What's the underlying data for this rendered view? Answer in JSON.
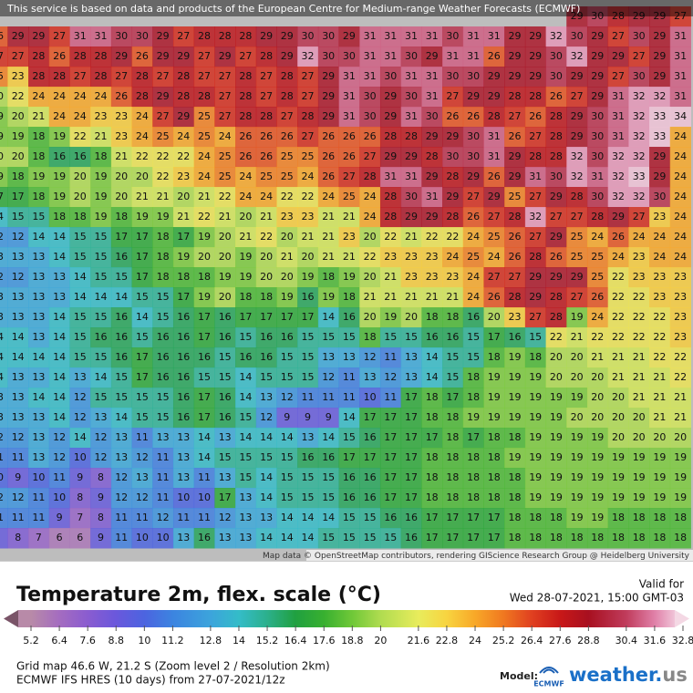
{
  "banner": "This service is based on data and products of the European Centre for Medium-range Weather Forecasts (ECMWF)",
  "attribution": "Map data © OpenStreetMap contributors, rendering GIScience Research Group @ Heidelberg University",
  "grid": {
    "rows": [
      [
        null,
        null,
        null,
        null,
        null,
        null,
        null,
        null,
        null,
        null,
        null,
        null,
        null,
        null,
        null,
        null,
        null,
        null,
        null,
        null,
        null,
        null,
        null,
        null,
        null,
        null,
        null,
        null,
        29,
        30,
        28,
        29,
        29,
        27
      ],
      [
        26,
        29,
        29,
        27,
        31,
        31,
        30,
        30,
        29,
        27,
        28,
        28,
        28,
        29,
        29,
        30,
        30,
        29,
        31,
        31,
        31,
        31,
        30,
        31,
        31,
        29,
        29,
        32,
        30,
        29,
        27,
        30,
        29,
        31
      ],
      [
        27,
        27,
        28,
        26,
        28,
        28,
        29,
        26,
        29,
        29,
        27,
        29,
        27,
        28,
        29,
        32,
        30,
        30,
        31,
        31,
        30,
        29,
        31,
        31,
        26,
        29,
        29,
        30,
        32,
        29,
        29,
        27,
        29,
        31
      ],
      [
        25,
        23,
        28,
        28,
        27,
        28,
        27,
        28,
        27,
        28,
        27,
        27,
        28,
        27,
        28,
        27,
        29,
        31,
        31,
        30,
        31,
        31,
        30,
        30,
        29,
        29,
        29,
        30,
        29,
        29,
        27,
        30,
        29,
        31
      ],
      [
        20,
        22,
        24,
        24,
        24,
        24,
        26,
        28,
        29,
        28,
        28,
        27,
        28,
        27,
        28,
        27,
        29,
        31,
        30,
        29,
        30,
        31,
        27,
        29,
        29,
        28,
        28,
        26,
        27,
        29,
        31,
        32,
        32,
        31
      ],
      [
        19,
        20,
        21,
        24,
        24,
        23,
        23,
        24,
        27,
        29,
        25,
        27,
        28,
        28,
        27,
        28,
        29,
        31,
        30,
        29,
        31,
        30,
        26,
        26,
        28,
        27,
        26,
        28,
        29,
        30,
        31,
        32,
        33,
        34
      ],
      [
        19,
        19,
        18,
        19,
        22,
        21,
        23,
        24,
        25,
        24,
        25,
        24,
        26,
        26,
        26,
        27,
        26,
        26,
        26,
        28,
        28,
        29,
        29,
        30,
        31,
        26,
        27,
        28,
        29,
        30,
        31,
        32,
        33,
        24
      ],
      [
        20,
        20,
        18,
        16,
        16,
        18,
        21,
        22,
        22,
        22,
        24,
        25,
        26,
        26,
        25,
        25,
        26,
        26,
        27,
        29,
        29,
        28,
        30,
        30,
        31,
        29,
        28,
        28,
        32,
        30,
        32,
        32,
        29,
        24
      ],
      [
        19,
        18,
        19,
        19,
        20,
        19,
        20,
        20,
        22,
        23,
        24,
        25,
        24,
        25,
        25,
        24,
        26,
        27,
        28,
        31,
        31,
        29,
        28,
        29,
        26,
        29,
        31,
        30,
        32,
        31,
        32,
        33,
        29,
        24
      ],
      [
        17,
        17,
        18,
        19,
        20,
        19,
        20,
        21,
        21,
        20,
        21,
        22,
        24,
        24,
        22,
        22,
        24,
        25,
        24,
        28,
        30,
        31,
        29,
        27,
        29,
        25,
        27,
        29,
        28,
        30,
        32,
        32,
        30,
        24
      ],
      [
        14,
        15,
        15,
        18,
        18,
        19,
        18,
        19,
        19,
        21,
        22,
        21,
        20,
        21,
        23,
        23,
        21,
        21,
        24,
        28,
        29,
        29,
        28,
        26,
        27,
        28,
        32,
        27,
        27,
        28,
        29,
        27,
        23,
        24
      ],
      [
        12,
        12,
        14,
        14,
        15,
        15,
        17,
        17,
        18,
        17,
        19,
        20,
        21,
        22,
        20,
        21,
        21,
        23,
        20,
        22,
        21,
        22,
        22,
        24,
        25,
        26,
        27,
        29,
        25,
        24,
        26,
        24,
        24,
        24
      ],
      [
        13,
        13,
        13,
        14,
        15,
        15,
        16,
        17,
        18,
        19,
        20,
        20,
        19,
        20,
        21,
        20,
        21,
        21,
        22,
        23,
        23,
        23,
        24,
        25,
        24,
        26,
        28,
        26,
        25,
        25,
        24,
        23,
        24,
        24
      ],
      [
        12,
        12,
        13,
        13,
        14,
        15,
        15,
        17,
        18,
        18,
        18,
        19,
        19,
        20,
        20,
        19,
        18,
        19,
        20,
        21,
        23,
        23,
        23,
        24,
        27,
        27,
        29,
        29,
        29,
        25,
        22,
        23,
        23,
        23
      ],
      [
        13,
        13,
        13,
        13,
        14,
        14,
        14,
        15,
        15,
        17,
        19,
        20,
        18,
        18,
        19,
        16,
        19,
        18,
        21,
        21,
        21,
        21,
        21,
        24,
        26,
        28,
        29,
        28,
        27,
        26,
        22,
        22,
        23,
        23
      ],
      [
        13,
        13,
        13,
        14,
        15,
        15,
        16,
        14,
        15,
        16,
        17,
        16,
        17,
        17,
        17,
        17,
        14,
        16,
        20,
        19,
        20,
        18,
        18,
        16,
        20,
        23,
        27,
        28,
        19,
        24,
        22,
        22,
        22,
        23
      ],
      [
        14,
        14,
        13,
        14,
        15,
        16,
        16,
        15,
        16,
        16,
        17,
        16,
        15,
        16,
        16,
        15,
        15,
        15,
        18,
        15,
        15,
        16,
        16,
        15,
        17,
        16,
        15,
        22,
        21,
        22,
        22,
        22,
        22,
        23
      ],
      [
        14,
        14,
        14,
        14,
        15,
        15,
        16,
        17,
        16,
        16,
        16,
        15,
        16,
        16,
        15,
        15,
        13,
        13,
        12,
        11,
        13,
        14,
        15,
        15,
        18,
        19,
        18,
        20,
        20,
        21,
        21,
        21,
        22,
        22
      ],
      [
        14,
        13,
        13,
        14,
        13,
        14,
        15,
        17,
        16,
        16,
        15,
        15,
        14,
        15,
        15,
        15,
        12,
        11,
        13,
        12,
        13,
        14,
        15,
        18,
        19,
        19,
        19,
        20,
        20,
        20,
        21,
        21,
        21,
        22
      ],
      [
        13,
        13,
        14,
        14,
        12,
        15,
        15,
        15,
        15,
        16,
        17,
        16,
        14,
        13,
        12,
        11,
        11,
        11,
        10,
        11,
        17,
        18,
        17,
        18,
        19,
        19,
        19,
        19,
        19,
        20,
        20,
        21,
        21,
        21
      ],
      [
        13,
        13,
        13,
        14,
        12,
        13,
        14,
        15,
        15,
        16,
        17,
        16,
        15,
        12,
        9,
        9,
        9,
        14,
        17,
        17,
        17,
        18,
        18,
        19,
        19,
        19,
        19,
        19,
        20,
        20,
        20,
        20,
        21,
        21
      ],
      [
        12,
        12,
        13,
        12,
        14,
        12,
        13,
        11,
        13,
        13,
        14,
        13,
        14,
        14,
        14,
        13,
        14,
        15,
        16,
        17,
        17,
        17,
        18,
        17,
        18,
        18,
        19,
        19,
        19,
        19,
        20,
        20,
        20,
        20
      ],
      [
        11,
        11,
        13,
        12,
        10,
        12,
        13,
        12,
        11,
        13,
        14,
        15,
        15,
        15,
        15,
        16,
        16,
        17,
        17,
        17,
        17,
        18,
        18,
        18,
        18,
        19,
        19,
        19,
        19,
        19,
        19,
        19,
        19,
        19
      ],
      [
        10,
        9,
        10,
        11,
        9,
        8,
        12,
        13,
        11,
        13,
        11,
        13,
        15,
        14,
        15,
        15,
        15,
        16,
        16,
        17,
        17,
        18,
        18,
        18,
        18,
        18,
        19,
        19,
        19,
        19,
        19,
        19,
        19,
        19
      ],
      [
        12,
        12,
        11,
        10,
        8,
        9,
        12,
        12,
        11,
        10,
        10,
        17,
        13,
        14,
        15,
        15,
        15,
        16,
        16,
        17,
        17,
        18,
        18,
        18,
        18,
        18,
        19,
        19,
        19,
        19,
        19,
        19,
        19,
        19
      ],
      [
        11,
        11,
        11,
        9,
        7,
        8,
        11,
        11,
        12,
        11,
        11,
        12,
        13,
        13,
        14,
        14,
        14,
        15,
        15,
        16,
        16,
        17,
        17,
        17,
        17,
        18,
        18,
        18,
        19,
        19,
        18,
        18,
        18,
        18
      ],
      [
        9,
        8,
        7,
        6,
        6,
        9,
        11,
        10,
        10,
        13,
        16,
        13,
        13,
        14,
        14,
        14,
        15,
        15,
        15,
        15,
        16,
        17,
        17,
        17,
        17,
        18,
        18,
        18,
        18,
        18,
        18,
        18,
        18,
        18
      ]
    ]
  },
  "legend": {
    "title": "Temperature 2m, flex. scale (°C)",
    "valid_label": "Valid for",
    "valid_time": "Wed 28-07-2021, 15:00 GMT-03",
    "ticks": [
      5.2,
      6.4,
      7.6,
      8.8,
      10,
      11.2,
      12.8,
      14,
      15.2,
      16.4,
      17.6,
      18.8,
      20,
      21.6,
      22.8,
      24,
      25.2,
      26.4,
      27.6,
      28.8,
      30.4,
      31.6,
      32.8
    ],
    "colors": [
      "#b88aa8",
      "#a46cc0",
      "#8a5cd0",
      "#6a58dc",
      "#4c64e0",
      "#3c84e0",
      "#3ca4dc",
      "#34bcc8",
      "#2cb08c",
      "#20a040",
      "#38b030",
      "#70c838",
      "#b0dc50",
      "#e8ec5c",
      "#f8d440",
      "#f8a828",
      "#f07820",
      "#e04020",
      "#c81818",
      "#a81020",
      "#c03c5c",
      "#e080a8",
      "#f0c4d8"
    ]
  },
  "footer": {
    "grid_info": "Grid map 46.6 W, 21.2 S (Zoom level 2 / Resolution 2km)",
    "model_run": "ECMWF IFS HRES (10 days) from 27-07-2021/12z",
    "model_label": "Model:",
    "ecmwf": "ECMWF",
    "brand": "weather.",
    "brand_tld": "us"
  }
}
